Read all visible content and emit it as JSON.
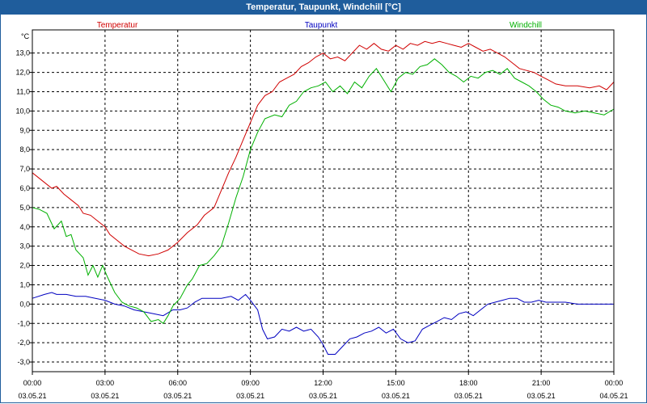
{
  "window": {
    "title": "Temperatur, Taupunkt, Windchill [°C]"
  },
  "chart_data": {
    "type": "line",
    "title": "Temperatur, Taupunkt, Windchill [°C]",
    "ylabel": "°C",
    "ylim": [
      -3.5,
      14.2
    ],
    "yticks": [
      -3.0,
      -2.0,
      -1.0,
      0.0,
      1.0,
      2.0,
      3.0,
      4.0,
      5.0,
      6.0,
      7.0,
      8.0,
      9.0,
      10.0,
      11.0,
      12.0,
      13.0
    ],
    "ytick_labels": [
      "-3,0",
      "-2,0",
      "-1,0",
      "0,0",
      "1,0",
      "2,0",
      "3,0",
      "4,0",
      "5,0",
      "6,0",
      "7,0",
      "8,0",
      "9,0",
      "10,0",
      "11,0",
      "12,0",
      "13,0"
    ],
    "xlim_hours": [
      0,
      24
    ],
    "xticks": [
      {
        "hour": 0,
        "time": "00:00",
        "date": "03.05.21"
      },
      {
        "hour": 3,
        "time": "03:00",
        "date": "03.05.21"
      },
      {
        "hour": 6,
        "time": "06:00",
        "date": "03.05.21"
      },
      {
        "hour": 9,
        "time": "09:00",
        "date": "03.05.21"
      },
      {
        "hour": 12,
        "time": "12:00",
        "date": "03.05.21"
      },
      {
        "hour": 15,
        "time": "15:00",
        "date": "03.05.21"
      },
      {
        "hour": 18,
        "time": "18:00",
        "date": "03.05.21"
      },
      {
        "hour": 21,
        "time": "21:00",
        "date": "03.05.21"
      },
      {
        "hour": 24,
        "time": "00:00",
        "date": "04.05.21"
      }
    ],
    "grid": true,
    "series": [
      {
        "name": "Temperatur",
        "color": "#d00000",
        "points": [
          [
            0,
            6.8
          ],
          [
            0.5,
            6.3
          ],
          [
            0.8,
            6.0
          ],
          [
            1.0,
            6.1
          ],
          [
            1.3,
            5.7
          ],
          [
            1.6,
            5.4
          ],
          [
            1.9,
            5.1
          ],
          [
            2.1,
            4.7
          ],
          [
            2.4,
            4.6
          ],
          [
            2.7,
            4.3
          ],
          [
            3.0,
            4.0
          ],
          [
            3.2,
            3.6
          ],
          [
            3.5,
            3.3
          ],
          [
            3.8,
            3.0
          ],
          [
            4.1,
            2.8
          ],
          [
            4.4,
            2.6
          ],
          [
            4.8,
            2.5
          ],
          [
            5.2,
            2.6
          ],
          [
            5.6,
            2.8
          ],
          [
            6.0,
            3.2
          ],
          [
            6.4,
            3.7
          ],
          [
            6.8,
            4.1
          ],
          [
            7.1,
            4.6
          ],
          [
            7.5,
            5.0
          ],
          [
            7.8,
            5.9
          ],
          [
            8.1,
            6.8
          ],
          [
            8.4,
            7.6
          ],
          [
            8.7,
            8.5
          ],
          [
            9.0,
            9.4
          ],
          [
            9.3,
            10.3
          ],
          [
            9.6,
            10.8
          ],
          [
            9.9,
            11.0
          ],
          [
            10.2,
            11.5
          ],
          [
            10.5,
            11.7
          ],
          [
            10.8,
            11.9
          ],
          [
            11.1,
            12.3
          ],
          [
            11.4,
            12.5
          ],
          [
            11.7,
            12.8
          ],
          [
            12.0,
            13.0
          ],
          [
            12.3,
            12.7
          ],
          [
            12.6,
            12.8
          ],
          [
            12.9,
            12.6
          ],
          [
            13.2,
            13.0
          ],
          [
            13.5,
            13.4
          ],
          [
            13.8,
            13.2
          ],
          [
            14.1,
            13.5
          ],
          [
            14.4,
            13.2
          ],
          [
            14.7,
            13.1
          ],
          [
            15.0,
            13.4
          ],
          [
            15.3,
            13.2
          ],
          [
            15.6,
            13.5
          ],
          [
            15.9,
            13.4
          ],
          [
            16.2,
            13.6
          ],
          [
            16.5,
            13.5
          ],
          [
            16.8,
            13.6
          ],
          [
            17.1,
            13.5
          ],
          [
            17.4,
            13.4
          ],
          [
            17.7,
            13.3
          ],
          [
            18.0,
            13.5
          ],
          [
            18.3,
            13.3
          ],
          [
            18.6,
            13.1
          ],
          [
            18.9,
            13.2
          ],
          [
            19.2,
            13.0
          ],
          [
            19.5,
            12.8
          ],
          [
            19.8,
            12.5
          ],
          [
            20.1,
            12.2
          ],
          [
            20.4,
            12.1
          ],
          [
            20.7,
            12.0
          ],
          [
            21.0,
            11.8
          ],
          [
            21.3,
            11.6
          ],
          [
            21.6,
            11.4
          ],
          [
            22.0,
            11.3
          ],
          [
            22.5,
            11.3
          ],
          [
            23.0,
            11.2
          ],
          [
            23.4,
            11.3
          ],
          [
            23.7,
            11.1
          ],
          [
            24.0,
            11.5
          ]
        ]
      },
      {
        "name": "Taupunkt",
        "color": "#0000c0",
        "points": [
          [
            0,
            0.3
          ],
          [
            0.5,
            0.5
          ],
          [
            0.8,
            0.6
          ],
          [
            1.0,
            0.5
          ],
          [
            1.4,
            0.5
          ],
          [
            1.8,
            0.4
          ],
          [
            2.2,
            0.4
          ],
          [
            2.6,
            0.3
          ],
          [
            3.0,
            0.2
          ],
          [
            3.4,
            0.0
          ],
          [
            3.8,
            -0.1
          ],
          [
            4.2,
            -0.3
          ],
          [
            4.6,
            -0.4
          ],
          [
            5.0,
            -0.5
          ],
          [
            5.4,
            -0.6
          ],
          [
            5.8,
            -0.3
          ],
          [
            6.1,
            -0.3
          ],
          [
            6.4,
            -0.2
          ],
          [
            6.7,
            0.1
          ],
          [
            7.0,
            0.3
          ],
          [
            7.4,
            0.3
          ],
          [
            7.8,
            0.3
          ],
          [
            8.2,
            0.4
          ],
          [
            8.5,
            0.2
          ],
          [
            8.8,
            0.5
          ],
          [
            9.0,
            0.2
          ],
          [
            9.3,
            -0.3
          ],
          [
            9.5,
            -1.3
          ],
          [
            9.7,
            -1.8
          ],
          [
            10.0,
            -1.7
          ],
          [
            10.3,
            -1.3
          ],
          [
            10.6,
            -1.4
          ],
          [
            10.9,
            -1.2
          ],
          [
            11.2,
            -1.4
          ],
          [
            11.5,
            -1.3
          ],
          [
            11.8,
            -1.7
          ],
          [
            12.0,
            -2.1
          ],
          [
            12.2,
            -2.6
          ],
          [
            12.5,
            -2.6
          ],
          [
            12.8,
            -2.2
          ],
          [
            13.1,
            -1.8
          ],
          [
            13.4,
            -1.7
          ],
          [
            13.7,
            -1.5
          ],
          [
            14.0,
            -1.4
          ],
          [
            14.3,
            -1.2
          ],
          [
            14.6,
            -1.5
          ],
          [
            14.9,
            -1.3
          ],
          [
            15.2,
            -1.8
          ],
          [
            15.5,
            -2.0
          ],
          [
            15.8,
            -1.9
          ],
          [
            16.1,
            -1.3
          ],
          [
            16.4,
            -1.1
          ],
          [
            16.7,
            -0.9
          ],
          [
            17.0,
            -0.7
          ],
          [
            17.3,
            -0.8
          ],
          [
            17.6,
            -0.5
          ],
          [
            17.9,
            -0.4
          ],
          [
            18.2,
            -0.6
          ],
          [
            18.5,
            -0.3
          ],
          [
            18.8,
            0.0
          ],
          [
            19.1,
            0.1
          ],
          [
            19.4,
            0.2
          ],
          [
            19.7,
            0.3
          ],
          [
            20.0,
            0.3
          ],
          [
            20.3,
            0.1
          ],
          [
            20.6,
            0.1
          ],
          [
            20.9,
            0.2
          ],
          [
            21.2,
            0.1
          ],
          [
            21.6,
            0.1
          ],
          [
            22.0,
            0.1
          ],
          [
            22.5,
            0.0
          ],
          [
            23.0,
            0.0
          ],
          [
            23.5,
            0.0
          ],
          [
            24.0,
            0.0
          ]
        ]
      },
      {
        "name": "Windchill",
        "color": "#00b000",
        "points": [
          [
            0,
            5.0
          ],
          [
            0.3,
            4.9
          ],
          [
            0.6,
            4.7
          ],
          [
            0.9,
            3.9
          ],
          [
            1.2,
            4.3
          ],
          [
            1.4,
            3.5
          ],
          [
            1.6,
            3.6
          ],
          [
            1.8,
            2.8
          ],
          [
            2.1,
            2.4
          ],
          [
            2.3,
            1.5
          ],
          [
            2.5,
            2.0
          ],
          [
            2.7,
            1.4
          ],
          [
            2.9,
            2.0
          ],
          [
            3.1,
            1.4
          ],
          [
            3.4,
            0.6
          ],
          [
            3.7,
            0.1
          ],
          [
            4.0,
            -0.1
          ],
          [
            4.3,
            -0.2
          ],
          [
            4.6,
            -0.4
          ],
          [
            4.9,
            -0.9
          ],
          [
            5.2,
            -0.8
          ],
          [
            5.4,
            -1.0
          ],
          [
            5.6,
            -0.6
          ],
          [
            5.8,
            -0.1
          ],
          [
            6.1,
            0.3
          ],
          [
            6.4,
            1.0
          ],
          [
            6.6,
            1.3
          ],
          [
            6.9,
            2.0
          ],
          [
            7.2,
            2.1
          ],
          [
            7.5,
            2.5
          ],
          [
            7.8,
            3.0
          ],
          [
            8.1,
            4.2
          ],
          [
            8.4,
            5.5
          ],
          [
            8.7,
            6.6
          ],
          [
            9.0,
            8.0
          ],
          [
            9.3,
            8.9
          ],
          [
            9.6,
            9.6
          ],
          [
            10.0,
            9.8
          ],
          [
            10.3,
            9.7
          ],
          [
            10.6,
            10.3
          ],
          [
            10.9,
            10.5
          ],
          [
            11.2,
            11.0
          ],
          [
            11.5,
            11.2
          ],
          [
            11.8,
            11.3
          ],
          [
            12.1,
            11.5
          ],
          [
            12.4,
            11.0
          ],
          [
            12.7,
            11.3
          ],
          [
            13.0,
            10.9
          ],
          [
            13.3,
            11.5
          ],
          [
            13.6,
            11.2
          ],
          [
            13.9,
            11.8
          ],
          [
            14.2,
            12.2
          ],
          [
            14.5,
            11.6
          ],
          [
            14.8,
            11.0
          ],
          [
            15.1,
            11.7
          ],
          [
            15.4,
            12.0
          ],
          [
            15.7,
            11.9
          ],
          [
            16.0,
            12.3
          ],
          [
            16.3,
            12.4
          ],
          [
            16.6,
            12.7
          ],
          [
            16.9,
            12.4
          ],
          [
            17.2,
            12.0
          ],
          [
            17.5,
            11.8
          ],
          [
            17.8,
            11.5
          ],
          [
            18.1,
            11.8
          ],
          [
            18.4,
            11.7
          ],
          [
            18.7,
            12.0
          ],
          [
            19.0,
            12.1
          ],
          [
            19.3,
            11.9
          ],
          [
            19.6,
            12.2
          ],
          [
            19.9,
            11.7
          ],
          [
            20.2,
            11.5
          ],
          [
            20.5,
            11.3
          ],
          [
            20.8,
            11.0
          ],
          [
            21.1,
            10.6
          ],
          [
            21.4,
            10.3
          ],
          [
            21.7,
            10.2
          ],
          [
            22.0,
            10.0
          ],
          [
            22.4,
            9.9
          ],
          [
            22.8,
            10.0
          ],
          [
            23.2,
            9.9
          ],
          [
            23.6,
            9.8
          ],
          [
            24.0,
            10.1
          ]
        ]
      }
    ]
  }
}
